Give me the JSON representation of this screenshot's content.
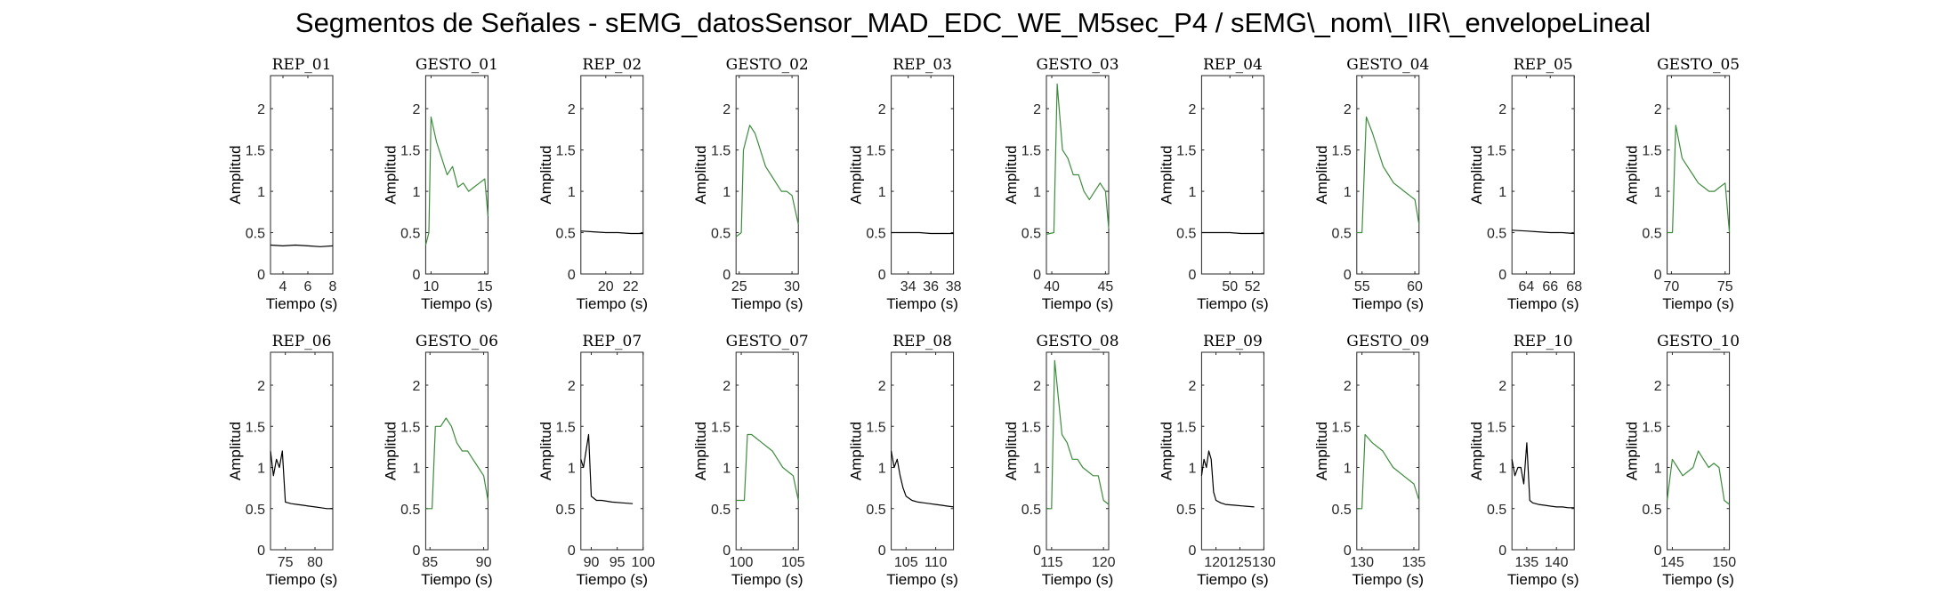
{
  "figure_title": "Segmentos de Señales - sEMG_datosSensor_MAD_EDC_WE_M5sec_P4 / sEMG\\_nom\\_IIR\\_envelopeLineal",
  "colors": {
    "rep": "#000000",
    "gesto": "#3d8c3d",
    "axes": "#262626"
  },
  "chart_data": [
    {
      "type": "line",
      "title": "REP_01",
      "kind": "rep",
      "xlim": [
        3,
        8
      ],
      "ylim": [
        0,
        2.4
      ],
      "xticks": [
        4,
        6,
        8
      ],
      "yticks": [
        0,
        0.5,
        1,
        1.5,
        2
      ],
      "xlabel": "Tiempo (s)",
      "ylabel": "Amplitud",
      "x": [
        3,
        4,
        5,
        6,
        7,
        8
      ],
      "y": [
        0.35,
        0.34,
        0.35,
        0.34,
        0.33,
        0.34
      ]
    },
    {
      "type": "line",
      "title": "GESTO_01",
      "kind": "gesto",
      "xlim": [
        9.5,
        15.3
      ],
      "ylim": [
        0,
        2.4
      ],
      "xticks": [
        10,
        15
      ],
      "yticks": [
        0,
        0.5,
        1,
        1.5,
        2
      ],
      "xlabel": "Tiempo (s)",
      "ylabel": "Amplitud",
      "x": [
        9.5,
        9.8,
        10,
        10.5,
        11,
        11.5,
        12,
        12.5,
        13,
        13.5,
        14,
        14.5,
        15,
        15.3
      ],
      "y": [
        0.35,
        0.5,
        1.9,
        1.6,
        1.4,
        1.2,
        1.3,
        1.05,
        1.1,
        1.0,
        1.05,
        1.1,
        1.15,
        0.7
      ]
    },
    {
      "type": "line",
      "title": "REP_02",
      "kind": "rep",
      "xlim": [
        18,
        23
      ],
      "ylim": [
        0,
        2.4
      ],
      "xticks": [
        20,
        22
      ],
      "yticks": [
        0,
        0.5,
        1,
        1.5,
        2
      ],
      "xlabel": "Tiempo (s)",
      "ylabel": "Amplitud",
      "x": [
        18,
        19,
        20,
        21,
        22,
        23
      ],
      "y": [
        0.52,
        0.51,
        0.5,
        0.5,
        0.49,
        0.49
      ]
    },
    {
      "type": "line",
      "title": "GESTO_02",
      "kind": "gesto",
      "xlim": [
        24.7,
        30.6
      ],
      "ylim": [
        0,
        2.4
      ],
      "xticks": [
        25,
        30
      ],
      "yticks": [
        0,
        0.5,
        1,
        1.5,
        2
      ],
      "xlabel": "Tiempo (s)",
      "ylabel": "Amplitud",
      "x": [
        24.7,
        25.2,
        25.4,
        26,
        26.5,
        27,
        27.5,
        28,
        28.5,
        29,
        29.5,
        30,
        30.6
      ],
      "y": [
        0.45,
        0.5,
        1.5,
        1.8,
        1.7,
        1.5,
        1.3,
        1.2,
        1.1,
        1.0,
        1.0,
        0.95,
        0.6
      ]
    },
    {
      "type": "line",
      "title": "REP_03",
      "kind": "rep",
      "xlim": [
        32.5,
        38
      ],
      "ylim": [
        0,
        2.4
      ],
      "xticks": [
        34,
        36,
        38
      ],
      "yticks": [
        0,
        0.5,
        1,
        1.5,
        2
      ],
      "xlabel": "Tiempo (s)",
      "ylabel": "Amplitud",
      "x": [
        32.5,
        34,
        35,
        36,
        37,
        38
      ],
      "y": [
        0.5,
        0.5,
        0.5,
        0.49,
        0.49,
        0.49
      ]
    },
    {
      "type": "line",
      "title": "GESTO_03",
      "kind": "gesto",
      "xlim": [
        39.5,
        45.3
      ],
      "ylim": [
        0,
        2.4
      ],
      "xticks": [
        40,
        45
      ],
      "yticks": [
        0,
        0.5,
        1,
        1.5,
        2
      ],
      "xlabel": "Tiempo (s)",
      "ylabel": "Amplitud",
      "x": [
        39.5,
        40.2,
        40.5,
        41,
        41.5,
        42,
        42.5,
        43,
        43.5,
        44,
        44.5,
        45,
        45.3
      ],
      "y": [
        0.48,
        0.5,
        2.3,
        1.5,
        1.4,
        1.2,
        1.2,
        1.0,
        0.9,
        1.0,
        1.1,
        1.0,
        0.55
      ]
    },
    {
      "type": "line",
      "title": "REP_04",
      "kind": "rep",
      "xlim": [
        47.5,
        53
      ],
      "ylim": [
        0,
        2.4
      ],
      "xticks": [
        50,
        52
      ],
      "yticks": [
        0,
        0.5,
        1,
        1.5,
        2
      ],
      "xlabel": "Tiempo (s)",
      "ylabel": "Amplitud",
      "x": [
        47.5,
        49,
        50,
        51,
        52,
        53
      ],
      "y": [
        0.5,
        0.5,
        0.5,
        0.49,
        0.49,
        0.49
      ]
    },
    {
      "type": "line",
      "title": "GESTO_04",
      "kind": "gesto",
      "xlim": [
        54.5,
        60.4
      ],
      "ylim": [
        0,
        2.4
      ],
      "xticks": [
        55,
        60
      ],
      "yticks": [
        0,
        0.5,
        1,
        1.5,
        2
      ],
      "xlabel": "Tiempo (s)",
      "ylabel": "Amplitud",
      "x": [
        54.5,
        55,
        55.4,
        56,
        56.5,
        57,
        57.5,
        58,
        58.5,
        59,
        59.5,
        60,
        60.4
      ],
      "y": [
        0.5,
        0.5,
        1.9,
        1.7,
        1.5,
        1.3,
        1.2,
        1.1,
        1.05,
        1.0,
        0.95,
        0.9,
        0.6
      ]
    },
    {
      "type": "line",
      "title": "REP_05",
      "kind": "rep",
      "xlim": [
        62.8,
        68
      ],
      "ylim": [
        0,
        2.4
      ],
      "xticks": [
        64,
        66,
        68
      ],
      "yticks": [
        0,
        0.5,
        1,
        1.5,
        2
      ],
      "xlabel": "Tiempo (s)",
      "ylabel": "Amplitud",
      "x": [
        62.8,
        64,
        65,
        66,
        67,
        68
      ],
      "y": [
        0.53,
        0.52,
        0.51,
        0.5,
        0.5,
        0.49
      ]
    },
    {
      "type": "line",
      "title": "GESTO_05",
      "kind": "gesto",
      "xlim": [
        69.6,
        75.4
      ],
      "ylim": [
        0,
        2.4
      ],
      "xticks": [
        70,
        75
      ],
      "yticks": [
        0,
        0.5,
        1,
        1.5,
        2
      ],
      "xlabel": "Tiempo (s)",
      "ylabel": "Amplitud",
      "x": [
        69.6,
        70.1,
        70.4,
        71,
        71.5,
        72,
        72.5,
        73,
        73.5,
        74,
        74.5,
        75,
        75.4
      ],
      "y": [
        0.5,
        0.5,
        1.8,
        1.4,
        1.3,
        1.2,
        1.1,
        1.05,
        1.0,
        1.0,
        1.05,
        1.1,
        0.5
      ]
    },
    {
      "type": "line",
      "title": "REP_06",
      "kind": "rep",
      "xlim": [
        72.5,
        83
      ],
      "ylim": [
        0,
        2.4
      ],
      "xticks": [
        75,
        80
      ],
      "yticks": [
        0,
        0.5,
        1,
        1.5,
        2
      ],
      "xlabel": "Tiempo (s)",
      "ylabel": "Amplitud",
      "x": [
        72.5,
        73,
        73.5,
        74,
        74.5,
        75,
        76,
        77,
        78,
        79,
        80,
        81,
        82,
        83
      ],
      "y": [
        1.2,
        0.9,
        1.1,
        1.0,
        1.2,
        0.58,
        0.56,
        0.55,
        0.54,
        0.53,
        0.52,
        0.51,
        0.5,
        0.5
      ]
    },
    {
      "type": "line",
      "title": "GESTO_06",
      "kind": "gesto",
      "xlim": [
        84.6,
        90.4
      ],
      "ylim": [
        0,
        2.4
      ],
      "xticks": [
        85,
        90
      ],
      "yticks": [
        0,
        0.5,
        1,
        1.5,
        2
      ],
      "xlabel": "Tiempo (s)",
      "ylabel": "Amplitud",
      "x": [
        84.6,
        85.2,
        85.5,
        86,
        86.5,
        87,
        87.5,
        88,
        88.5,
        89,
        89.5,
        90,
        90.4
      ],
      "y": [
        0.5,
        0.5,
        1.5,
        1.5,
        1.6,
        1.5,
        1.3,
        1.2,
        1.2,
        1.1,
        1.0,
        0.9,
        0.6
      ]
    },
    {
      "type": "line",
      "title": "REP_07",
      "kind": "rep",
      "xlim": [
        88,
        100
      ],
      "ylim": [
        0,
        2.4
      ],
      "xticks": [
        90,
        95,
        100
      ],
      "yticks": [
        0,
        0.5,
        1,
        1.5,
        2
      ],
      "xlabel": "Tiempo (s)",
      "ylabel": "Amplitud",
      "x": [
        88,
        88.5,
        89,
        89.5,
        90,
        91,
        92,
        94,
        96,
        98
      ],
      "y": [
        1.1,
        1.0,
        1.2,
        1.4,
        0.65,
        0.6,
        0.6,
        0.58,
        0.57,
        0.56
      ]
    },
    {
      "type": "line",
      "title": "GESTO_07",
      "kind": "gesto",
      "xlim": [
        99.5,
        105.5
      ],
      "ylim": [
        0,
        2.4
      ],
      "xticks": [
        100,
        105
      ],
      "yticks": [
        0,
        0.5,
        1,
        1.5,
        2
      ],
      "xlabel": "Tiempo (s)",
      "ylabel": "Amplitud",
      "x": [
        99.5,
        100.3,
        100.6,
        101,
        101.5,
        102,
        102.5,
        103,
        103.5,
        104,
        104.5,
        105,
        105.5
      ],
      "y": [
        0.6,
        0.6,
        1.4,
        1.4,
        1.35,
        1.3,
        1.25,
        1.2,
        1.1,
        1.0,
        0.95,
        0.9,
        0.6
      ]
    },
    {
      "type": "line",
      "title": "REP_08",
      "kind": "rep",
      "xlim": [
        102.5,
        113
      ],
      "ylim": [
        0,
        2.4
      ],
      "xticks": [
        105,
        110
      ],
      "yticks": [
        0,
        0.5,
        1,
        1.5,
        2
      ],
      "xlabel": "Tiempo (s)",
      "ylabel": "Amplitud",
      "x": [
        102.5,
        103,
        103.5,
        104,
        104.5,
        105,
        106,
        107,
        108,
        109,
        110,
        111,
        112,
        113
      ],
      "y": [
        1.2,
        1.0,
        1.1,
        0.9,
        0.75,
        0.65,
        0.6,
        0.58,
        0.57,
        0.56,
        0.55,
        0.54,
        0.53,
        0.52
      ]
    },
    {
      "type": "line",
      "title": "GESTO_08",
      "kind": "gesto",
      "xlim": [
        114.5,
        120.5
      ],
      "ylim": [
        0,
        2.4
      ],
      "xticks": [
        115,
        120
      ],
      "yticks": [
        0,
        0.5,
        1,
        1.5,
        2
      ],
      "xlabel": "Tiempo (s)",
      "ylabel": "Amplitud",
      "x": [
        114.5,
        115,
        115.3,
        116,
        116.5,
        117,
        117.5,
        118,
        118.5,
        119,
        119.5,
        120,
        120.5
      ],
      "y": [
        0.5,
        0.5,
        2.3,
        1.4,
        1.3,
        1.1,
        1.1,
        1.0,
        0.95,
        0.9,
        0.9,
        0.6,
        0.55
      ]
    },
    {
      "type": "line",
      "title": "REP_09",
      "kind": "rep",
      "xlim": [
        117,
        130
      ],
      "ylim": [
        0,
        2.4
      ],
      "xticks": [
        120,
        125,
        130
      ],
      "yticks": [
        0,
        0.5,
        1,
        1.5,
        2
      ],
      "xlabel": "Tiempo (s)",
      "ylabel": "Amplitud",
      "x": [
        117,
        117.5,
        118,
        118.5,
        119,
        119.5,
        120,
        121,
        122,
        124,
        126,
        128
      ],
      "y": [
        0.9,
        1.1,
        1.0,
        1.2,
        1.1,
        0.7,
        0.6,
        0.57,
        0.55,
        0.54,
        0.53,
        0.52
      ]
    },
    {
      "type": "line",
      "title": "GESTO_09",
      "kind": "gesto",
      "xlim": [
        129.5,
        135.5
      ],
      "ylim": [
        0,
        2.4
      ],
      "xticks": [
        130,
        135
      ],
      "yticks": [
        0,
        0.5,
        1,
        1.5,
        2
      ],
      "xlabel": "Tiempo (s)",
      "ylabel": "Amplitud",
      "x": [
        129.5,
        130,
        130.3,
        131,
        131.5,
        132,
        132.5,
        133,
        133.5,
        134,
        134.5,
        135,
        135.5
      ],
      "y": [
        0.5,
        0.5,
        1.4,
        1.3,
        1.25,
        1.2,
        1.1,
        1.0,
        0.95,
        0.9,
        0.85,
        0.8,
        0.6
      ]
    },
    {
      "type": "line",
      "title": "REP_10",
      "kind": "rep",
      "xlim": [
        132.5,
        143
      ],
      "ylim": [
        0,
        2.4
      ],
      "xticks": [
        135,
        140
      ],
      "yticks": [
        0,
        0.5,
        1,
        1.5,
        2
      ],
      "xlabel": "Tiempo (s)",
      "ylabel": "Amplitud",
      "x": [
        132.5,
        133,
        133.5,
        134,
        134.5,
        135,
        135.5,
        136,
        137,
        138,
        139,
        140,
        141,
        142,
        143
      ],
      "y": [
        1.1,
        0.9,
        1.0,
        1.0,
        0.8,
        1.3,
        0.6,
        0.57,
        0.55,
        0.54,
        0.53,
        0.52,
        0.52,
        0.51,
        0.51
      ]
    },
    {
      "type": "line",
      "title": "GESTO_10",
      "kind": "gesto",
      "xlim": [
        144.5,
        150.5
      ],
      "ylim": [
        0,
        2.4
      ],
      "xticks": [
        145,
        150
      ],
      "yticks": [
        0,
        0.5,
        1,
        1.5,
        2
      ],
      "xlabel": "Tiempo (s)",
      "ylabel": "Amplitud",
      "x": [
        144.5,
        145,
        145.5,
        146,
        146.5,
        147,
        147.5,
        148,
        148.5,
        149,
        149.5,
        150,
        150.5
      ],
      "y": [
        0.6,
        1.1,
        1.0,
        0.9,
        0.95,
        1.0,
        1.2,
        1.1,
        1.0,
        1.05,
        1.0,
        0.6,
        0.55
      ]
    }
  ]
}
